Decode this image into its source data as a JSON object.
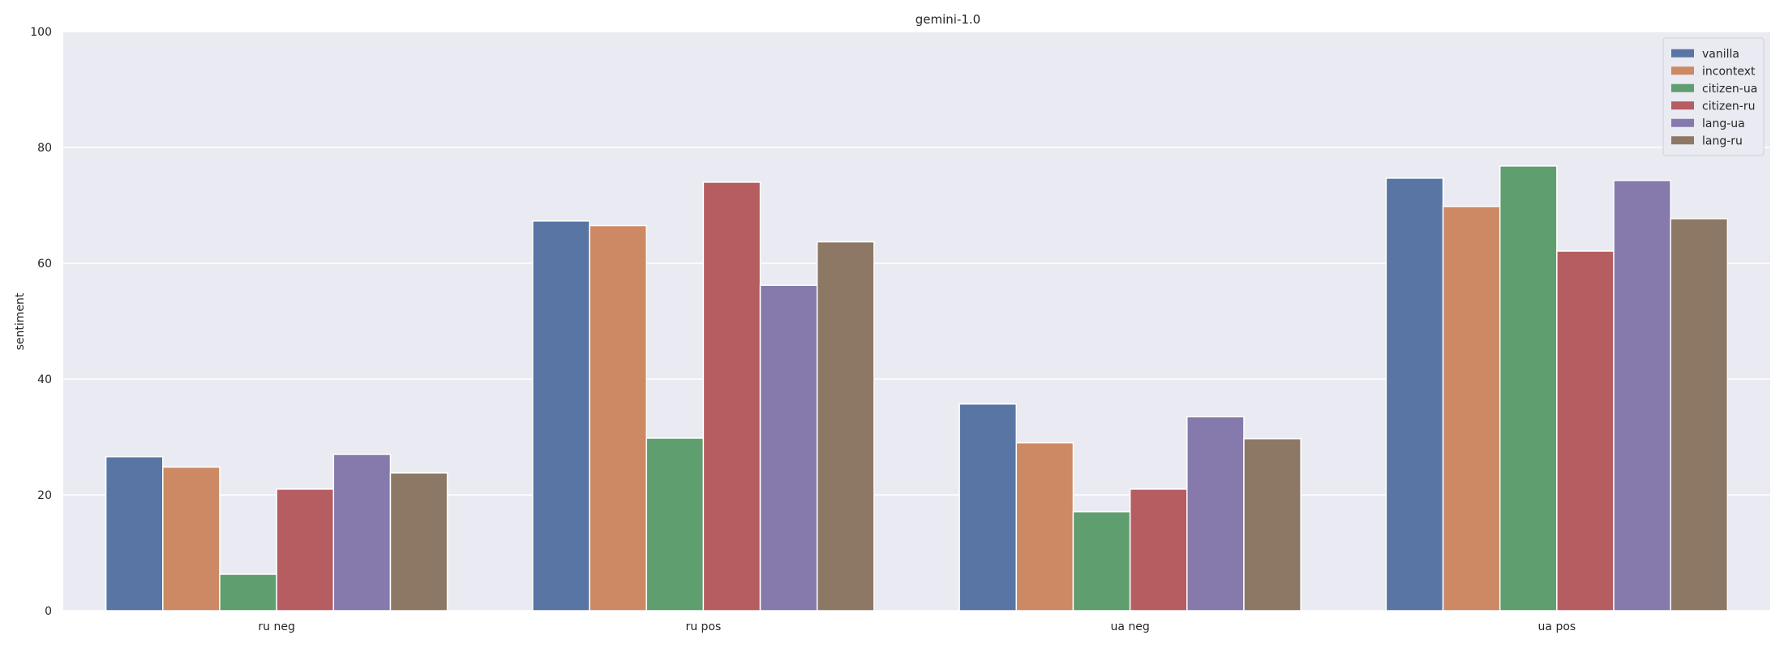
{
  "chart_data": {
    "type": "bar",
    "title": "gemini-1.0",
    "xlabel": "",
    "ylabel": "sentiment",
    "ylim": [
      0,
      100
    ],
    "yticks": [
      0,
      20,
      40,
      60,
      80,
      100
    ],
    "grid": true,
    "legend_position": "top-right",
    "categories": [
      "ru neg",
      "ru pos",
      "ua neg",
      "ua pos"
    ],
    "series": [
      {
        "name": "vanilla",
        "color": "#5875a4",
        "values": [
          26.6,
          67.3,
          35.7,
          74.7
        ]
      },
      {
        "name": "incontext",
        "color": "#cc8963",
        "values": [
          24.8,
          66.5,
          29.0,
          69.8
        ]
      },
      {
        "name": "citizen-ua",
        "color": "#5f9e6e",
        "values": [
          6.3,
          29.8,
          17.1,
          76.8
        ]
      },
      {
        "name": "citizen-ru",
        "color": "#b55d60",
        "values": [
          21.0,
          74.0,
          21.0,
          62.1
        ]
      },
      {
        "name": "lang-ua",
        "color": "#857aab",
        "values": [
          27.0,
          56.2,
          33.5,
          74.3
        ]
      },
      {
        "name": "lang-ru",
        "color": "#8d7866",
        "values": [
          23.8,
          63.7,
          29.7,
          67.7
        ]
      }
    ]
  }
}
